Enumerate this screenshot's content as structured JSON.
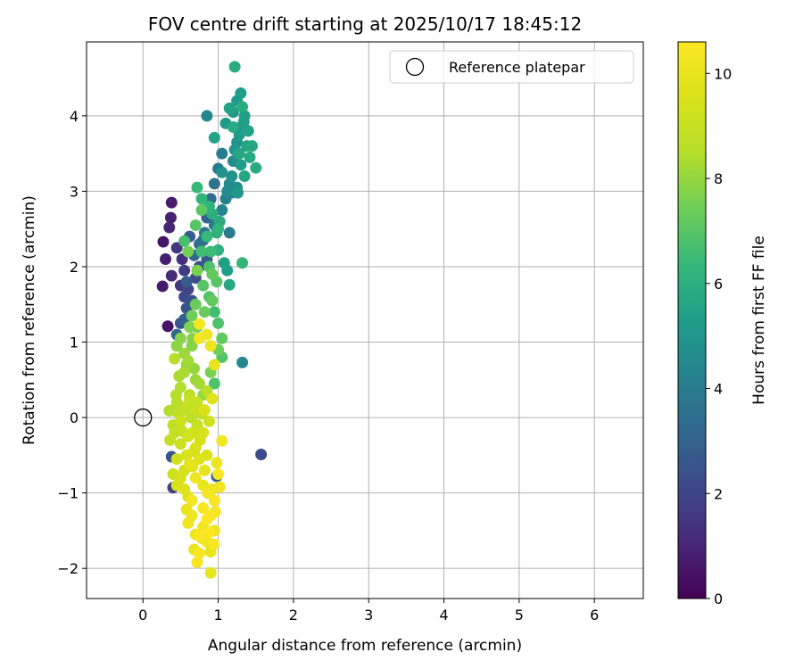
{
  "chart_data": {
    "type": "scatter",
    "title": "FOV centre drift starting at 2025/10/17 18:45:12",
    "xlabel": "Angular distance from reference (arcmin)",
    "ylabel": "Rotation from reference (arcmin)",
    "xlim": [
      -0.75,
      6.65
    ],
    "ylim": [
      -2.4,
      4.98
    ],
    "xticks": [
      0,
      1,
      2,
      3,
      4,
      5,
      6
    ],
    "xtick_labels": [
      "0",
      "1",
      "2",
      "3",
      "4",
      "5",
      "6"
    ],
    "yticks": [
      -2,
      -1,
      0,
      1,
      2,
      3,
      4
    ],
    "ytick_labels": [
      "−2",
      "−1",
      "0",
      "1",
      "2",
      "3",
      "4"
    ],
    "grid": true,
    "legend": {
      "location": "upper-right",
      "entries": [
        "Reference platepar"
      ]
    },
    "reference_point": {
      "x": 0,
      "y": 0,
      "label": "Reference platepar",
      "marker": "hollow-circle"
    },
    "colorbar": {
      "label": "Hours from first FF file",
      "colormap": "viridis",
      "min": 0,
      "max": 10.6,
      "ticks": [
        0,
        2,
        4,
        6,
        8,
        10
      ],
      "tick_labels": [
        "0",
        "2",
        "4",
        "6",
        "8",
        "10"
      ]
    },
    "series": [
      {
        "columns": [
          "x",
          "y",
          "hours"
        ],
        "points": [
          [
            0.33,
            1.21,
            0.5
          ],
          [
            0.38,
            2.85,
            0.7
          ],
          [
            0.37,
            2.65,
            0.9
          ],
          [
            0.35,
            2.52,
            1.0
          ],
          [
            0.27,
            2.33,
            0.6
          ],
          [
            0.3,
            2.1,
            0.8
          ],
          [
            0.26,
            1.74,
            0.7
          ],
          [
            0.38,
            1.88,
            1.2
          ],
          [
            0.45,
            2.25,
            1.5
          ],
          [
            0.52,
            2.1,
            1.3
          ],
          [
            0.55,
            1.95,
            1.7
          ],
          [
            0.5,
            1.75,
            1.6
          ],
          [
            0.6,
            1.7,
            2.0
          ],
          [
            0.65,
            1.55,
            2.3
          ],
          [
            0.58,
            1.45,
            2.6
          ],
          [
            0.55,
            1.3,
            2.9
          ],
          [
            0.45,
            1.1,
            3.2
          ],
          [
            0.7,
            1.85,
            2.2
          ],
          [
            0.75,
            2.0,
            2.4
          ],
          [
            0.85,
            2.1,
            2.6
          ],
          [
            0.62,
            2.4,
            2.8
          ],
          [
            0.9,
            2.9,
            3.4
          ],
          [
            0.95,
            3.1,
            3.6
          ],
          [
            1.0,
            3.3,
            3.8
          ],
          [
            1.05,
            3.5,
            4.0
          ],
          [
            0.85,
            2.65,
            3.0
          ],
          [
            0.8,
            2.35,
            3.1
          ],
          [
            1.1,
            2.9,
            4.2
          ],
          [
            1.15,
            3.1,
            4.5
          ],
          [
            1.2,
            3.4,
            4.6
          ],
          [
            1.25,
            3.65,
            4.8
          ],
          [
            1.3,
            3.85,
            5.0
          ],
          [
            1.2,
            4.05,
            5.1
          ],
          [
            1.25,
            4.2,
            5.2
          ],
          [
            1.3,
            4.3,
            5.3
          ],
          [
            1.35,
            4.0,
            5.4
          ],
          [
            1.4,
            3.8,
            5.5
          ],
          [
            1.28,
            3.5,
            5.6
          ],
          [
            1.45,
            3.6,
            5.7
          ],
          [
            1.5,
            3.31,
            5.8
          ],
          [
            1.35,
            3.2,
            5.6
          ],
          [
            1.22,
            4.65,
            5.9
          ],
          [
            1.1,
            3.9,
            5.2
          ],
          [
            0.85,
            4.0,
            4.4
          ],
          [
            0.95,
            3.71,
            5.5
          ],
          [
            1.05,
            3.25,
            4.9
          ],
          [
            1.25,
            3.05,
            4.7
          ],
          [
            1.18,
            2.98,
            4.3
          ],
          [
            1.15,
            2.45,
            3.9
          ],
          [
            1.02,
            2.6,
            5.8
          ],
          [
            0.98,
            2.45,
            6.0
          ],
          [
            1.0,
            2.22,
            6.1
          ],
          [
            0.88,
            2.8,
            6.2
          ],
          [
            0.78,
            2.9,
            6.3
          ],
          [
            0.72,
            3.05,
            6.4
          ],
          [
            0.9,
            2.2,
            6.5
          ],
          [
            1.08,
            2.05,
            5.4
          ],
          [
            1.12,
            1.95,
            5.3
          ],
          [
            1.15,
            1.76,
            5.7
          ],
          [
            1.32,
            2.05,
            6.3
          ],
          [
            1.32,
            0.73,
            4.5
          ],
          [
            1.57,
            -0.49,
            2.2
          ],
          [
            0.98,
            -0.78,
            3.0
          ],
          [
            0.95,
            1.4,
            6.6
          ],
          [
            1.0,
            1.25,
            6.8
          ],
          [
            0.88,
            1.6,
            6.9
          ],
          [
            0.8,
            1.75,
            7.0
          ],
          [
            0.92,
            1.9,
            7.2
          ],
          [
            0.7,
            1.5,
            7.3
          ],
          [
            0.65,
            1.35,
            7.4
          ],
          [
            0.55,
            2.34,
            6.7
          ],
          [
            0.7,
            2.55,
            7.0
          ],
          [
            0.78,
            2.75,
            7.1
          ],
          [
            0.6,
            2.2,
            7.5
          ],
          [
            0.72,
            1.95,
            7.6
          ],
          [
            0.62,
            1.2,
            7.7
          ],
          [
            0.5,
            1.05,
            7.8
          ],
          [
            0.45,
            0.95,
            7.9
          ],
          [
            1.05,
            1.05,
            7.2
          ],
          [
            1.0,
            0.9,
            7.4
          ],
          [
            1.05,
            0.8,
            6.9
          ],
          [
            0.95,
            0.45,
            6.8
          ],
          [
            0.9,
            0.6,
            7.6
          ],
          [
            0.8,
            0.3,
            8.0
          ],
          [
            0.7,
            0.5,
            8.1
          ],
          [
            0.6,
            0.75,
            8.2
          ],
          [
            0.55,
            0.6,
            8.3
          ],
          [
            0.5,
            0.4,
            8.4
          ],
          [
            0.42,
            0.78,
            8.5
          ],
          [
            0.45,
            0.2,
            8.6
          ],
          [
            0.48,
            0.05,
            8.7
          ],
          [
            0.4,
            -0.1,
            8.8
          ],
          [
            0.55,
            0.1,
            8.9
          ],
          [
            0.62,
            0.25,
            9.0
          ],
          [
            0.7,
            0.1,
            9.1
          ],
          [
            0.35,
            0.09,
            8.4
          ],
          [
            0.42,
            -0.2,
            8.9
          ],
          [
            0.5,
            -0.35,
            9.2
          ],
          [
            0.6,
            -0.25,
            9.3
          ],
          [
            0.7,
            -0.4,
            9.4
          ],
          [
            0.8,
            -0.2,
            9.5
          ],
          [
            0.88,
            -0.05,
            9.3
          ],
          [
            0.82,
            0.1,
            9.6
          ],
          [
            0.92,
            0.25,
            9.8
          ],
          [
            0.95,
            0.7,
            10.0
          ],
          [
            0.9,
            0.95,
            10.1
          ],
          [
            0.85,
            1.1,
            10.2
          ],
          [
            0.75,
            1.05,
            10.3
          ],
          [
            0.75,
            1.24,
            10.4
          ],
          [
            0.98,
            -0.6,
            10.1
          ],
          [
            1.05,
            -0.31,
            10.3
          ],
          [
            1.0,
            -0.75,
            10.5
          ],
          [
            1.02,
            -0.92,
            10.2
          ],
          [
            0.95,
            -1.1,
            10.4
          ],
          [
            0.9,
            -1.3,
            10.5
          ],
          [
            0.95,
            -1.5,
            10.1
          ],
          [
            0.85,
            -1.65,
            10.3
          ],
          [
            0.8,
            -1.45,
            10.2
          ],
          [
            0.75,
            -1.8,
            10.5
          ],
          [
            0.72,
            -1.92,
            10.4
          ],
          [
            0.9,
            -1.78,
            10.0
          ],
          [
            0.9,
            -2.06,
            9.9
          ],
          [
            0.7,
            -1.55,
            10.1
          ],
          [
            0.65,
            -1.3,
            10.2
          ],
          [
            0.58,
            -1.22,
            10.0
          ],
          [
            0.6,
            -1.05,
            9.8
          ],
          [
            0.55,
            -0.95,
            9.7
          ],
          [
            0.5,
            -0.8,
            9.5
          ],
          [
            0.45,
            -0.55,
            9.3
          ],
          [
            0.4,
            -0.75,
            9.2
          ],
          [
            0.38,
            -0.52,
            2.5
          ],
          [
            0.4,
            -0.93,
            1.8
          ],
          [
            0.45,
            -0.9,
            9.6
          ],
          [
            0.62,
            -0.62,
            9.9
          ],
          [
            0.75,
            -0.55,
            9.7
          ],
          [
            0.85,
            -0.5,
            9.6
          ],
          [
            0.8,
            -0.9,
            10.0
          ],
          [
            0.7,
            -0.8,
            10.1
          ],
          [
            0.65,
            -1.1,
            10.3
          ],
          [
            0.8,
            -1.2,
            10.4
          ],
          [
            0.85,
            -1.35,
            10.6
          ],
          [
            0.75,
            -1.55,
            10.5
          ],
          [
            0.6,
            -1.4,
            10.2
          ],
          [
            0.55,
            -0.7,
            9.4
          ],
          [
            0.68,
            -0.45,
            9.5
          ],
          [
            0.52,
            -0.18,
            9.1
          ],
          [
            0.58,
            -0.5,
            9.6
          ],
          [
            0.64,
            0.0,
            8.7
          ],
          [
            0.72,
            -0.1,
            9.0
          ],
          [
            0.78,
            0.05,
            8.8
          ],
          [
            0.85,
            0.35,
            8.6
          ],
          [
            0.75,
            0.45,
            8.2
          ],
          [
            0.68,
            0.65,
            8.0
          ],
          [
            0.65,
            0.95,
            7.8
          ],
          [
            0.55,
            0.85,
            8.1
          ],
          [
            0.62,
            0.3,
            8.5
          ],
          [
            0.72,
            0.2,
            8.9
          ],
          [
            0.58,
            0.15,
            9.0
          ],
          [
            0.5,
            -0.05,
            9.2
          ],
          [
            0.66,
            -0.2,
            9.3
          ],
          [
            0.76,
            -0.3,
            9.5
          ],
          [
            0.66,
            -0.65,
            9.8
          ],
          [
            0.82,
            -0.7,
            9.9
          ],
          [
            0.92,
            -0.95,
            10.1
          ],
          [
            0.86,
            -1.0,
            10.3
          ],
          [
            0.96,
            -1.25,
            10.4
          ],
          [
            0.78,
            -1.6,
            10.2
          ],
          [
            0.68,
            -1.75,
            10.0
          ],
          [
            0.88,
            -1.52,
            10.6
          ],
          [
            0.94,
            -1.68,
            10.5
          ],
          [
            0.55,
            1.6,
            2.1
          ],
          [
            0.5,
            1.25,
            2.5
          ],
          [
            0.58,
            1.8,
            2.8
          ],
          [
            0.68,
            2.15,
            3.2
          ],
          [
            0.75,
            2.3,
            3.5
          ],
          [
            0.82,
            2.45,
            3.7
          ],
          [
            0.95,
            2.55,
            4.0
          ],
          [
            1.05,
            2.75,
            4.3
          ],
          [
            1.12,
            3.0,
            4.6
          ],
          [
            1.18,
            3.2,
            4.9
          ],
          [
            1.22,
            3.55,
            5.0
          ],
          [
            1.28,
            3.75,
            5.2
          ],
          [
            1.34,
            3.92,
            5.4
          ],
          [
            1.38,
            3.6,
            5.6
          ],
          [
            1.3,
            3.35,
            5.3
          ],
          [
            1.2,
            3.85,
            5.8
          ],
          [
            1.15,
            4.1,
            5.5
          ],
          [
            1.32,
            4.12,
            5.9
          ],
          [
            1.42,
            3.45,
            5.7
          ],
          [
            1.26,
            2.98,
            5.1
          ],
          [
            0.92,
            2.7,
            6.0
          ],
          [
            1.0,
            2.5,
            6.2
          ],
          [
            0.85,
            2.4,
            6.4
          ],
          [
            0.78,
            2.2,
            6.6
          ],
          [
            0.88,
            2.0,
            6.8
          ],
          [
            0.98,
            1.8,
            7.0
          ],
          [
            0.92,
            1.55,
            7.2
          ],
          [
            0.82,
            1.4,
            7.3
          ],
          [
            0.72,
            1.2,
            7.5
          ],
          [
            0.66,
            1.05,
            7.7
          ],
          [
            0.58,
            0.7,
            8.0
          ],
          [
            0.48,
            0.55,
            8.3
          ],
          [
            0.44,
            0.3,
            8.5
          ],
          [
            0.4,
            0.1,
            8.6
          ],
          [
            0.36,
            -0.3,
            8.9
          ]
        ]
      }
    ]
  }
}
